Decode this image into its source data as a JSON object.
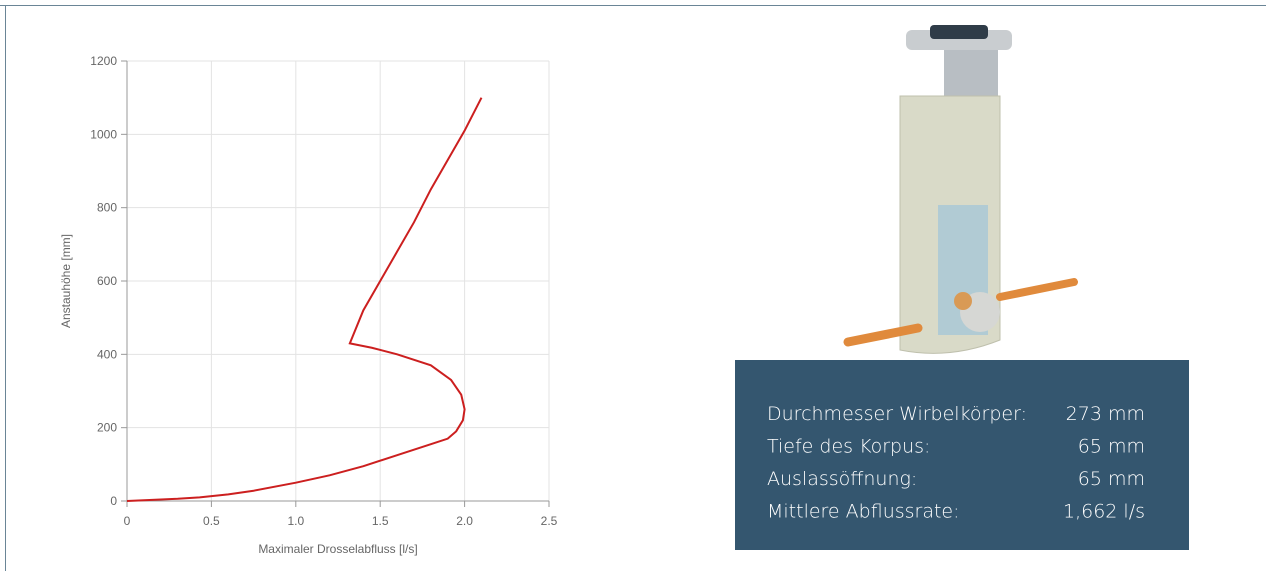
{
  "chart_data": {
    "type": "line",
    "x_label": "Maximaler Drosselabfluss [l/s]",
    "y_label": "Anstauhöhe [mm]",
    "x": [
      0,
      0.1,
      0.2,
      0.3,
      0.43,
      0.6,
      0.75,
      1.0,
      1.2,
      1.4,
      1.6,
      1.8,
      1.9,
      1.95,
      1.99,
      2.0,
      1.98,
      1.92,
      1.8,
      1.6,
      1.45,
      1.32,
      1.4,
      1.5,
      1.6,
      1.7,
      1.8,
      1.9,
      2.0,
      2.1
    ],
    "values": [
      0,
      2,
      4,
      6,
      10,
      18,
      28,
      50,
      70,
      95,
      125,
      155,
      170,
      190,
      220,
      250,
      290,
      330,
      370,
      400,
      418,
      430,
      520,
      600,
      680,
      760,
      850,
      930,
      1010,
      1100
    ],
    "color": "#cc1f1f",
    "xlim": [
      0,
      2.5
    ],
    "xticks": [
      0,
      0.5,
      {
        "value": 1,
        "label": "1.0"
      },
      1.5,
      {
        "value": 2,
        "label": "2.0"
      },
      2.5
    ],
    "ylim": [
      0,
      1200
    ],
    "yticks": [
      0,
      200,
      400,
      600,
      800,
      1000,
      1200
    ],
    "grid": true
  },
  "specs": {
    "rows": [
      [
        "Durchmesser Wirbelkörper:",
        "273 mm"
      ],
      [
        "Tiefe des Korpus:",
        "65 mm"
      ],
      [
        "Auslassöffnung:",
        "65 mm"
      ],
      [
        "Mittlere Abflussrate:",
        "1,662 l/s"
      ]
    ]
  }
}
